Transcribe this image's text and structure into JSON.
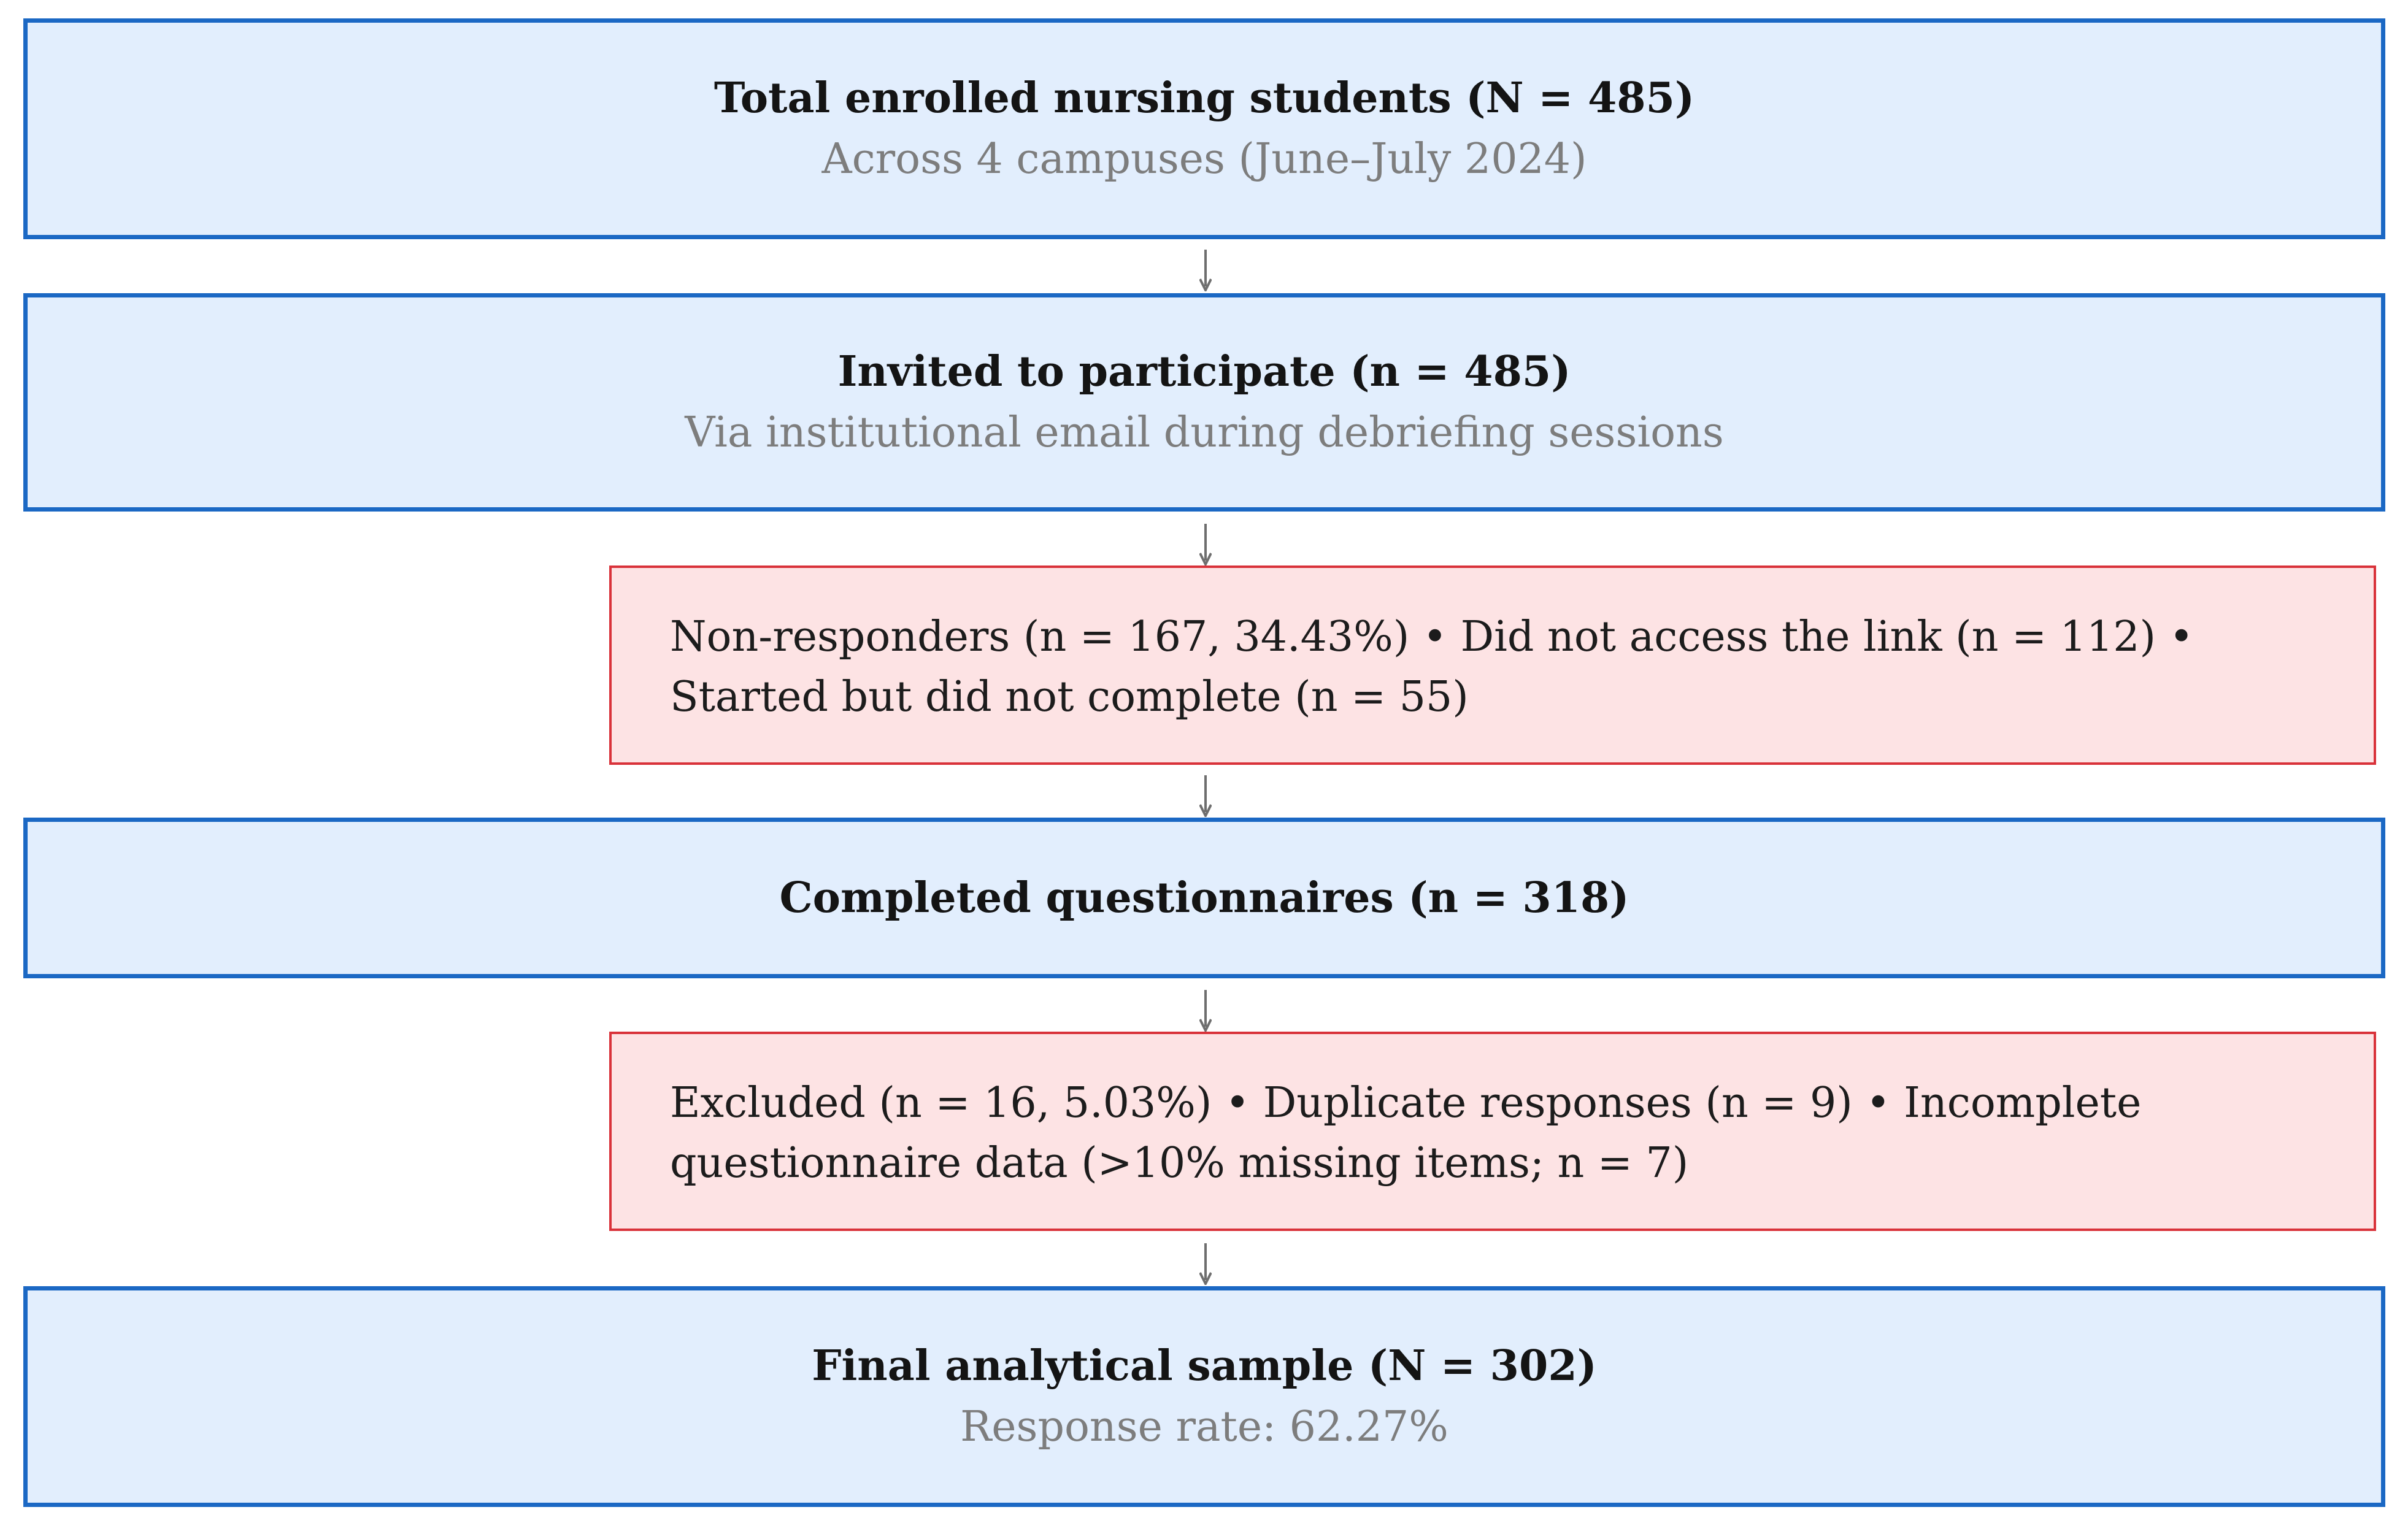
{
  "flowchart": {
    "enrolled": {
      "title": "Total enrolled nursing students (N = 485)",
      "subtitle": "Across 4 campuses (June–July 2024)"
    },
    "invited": {
      "title": "Invited to participate (n = 485)",
      "subtitle": "Via institutional email during debriefing sessions"
    },
    "nonresponders": {
      "text": "Non-responders (n = 167, 34.43%) • Did not access the link (n = 112) • Started but did not complete (n = 55)"
    },
    "completed": {
      "title": "Completed questionnaires (n = 318)"
    },
    "excluded": {
      "text": "Excluded (n = 16, 5.03%) • Duplicate responses (n = 9) • Incomplete questionnaire data (>10% missing items; n = 7)"
    },
    "final": {
      "title": "Final analytical sample (N = 302)",
      "subtitle": "Response rate: 62.27%"
    }
  },
  "colors": {
    "main_box_fill": "#e2eefd",
    "main_box_border": "#1b68c4",
    "exclusion_box_fill": "#fde3e4",
    "exclusion_box_border": "#d9323a",
    "arrow": "#6e6e6e"
  }
}
